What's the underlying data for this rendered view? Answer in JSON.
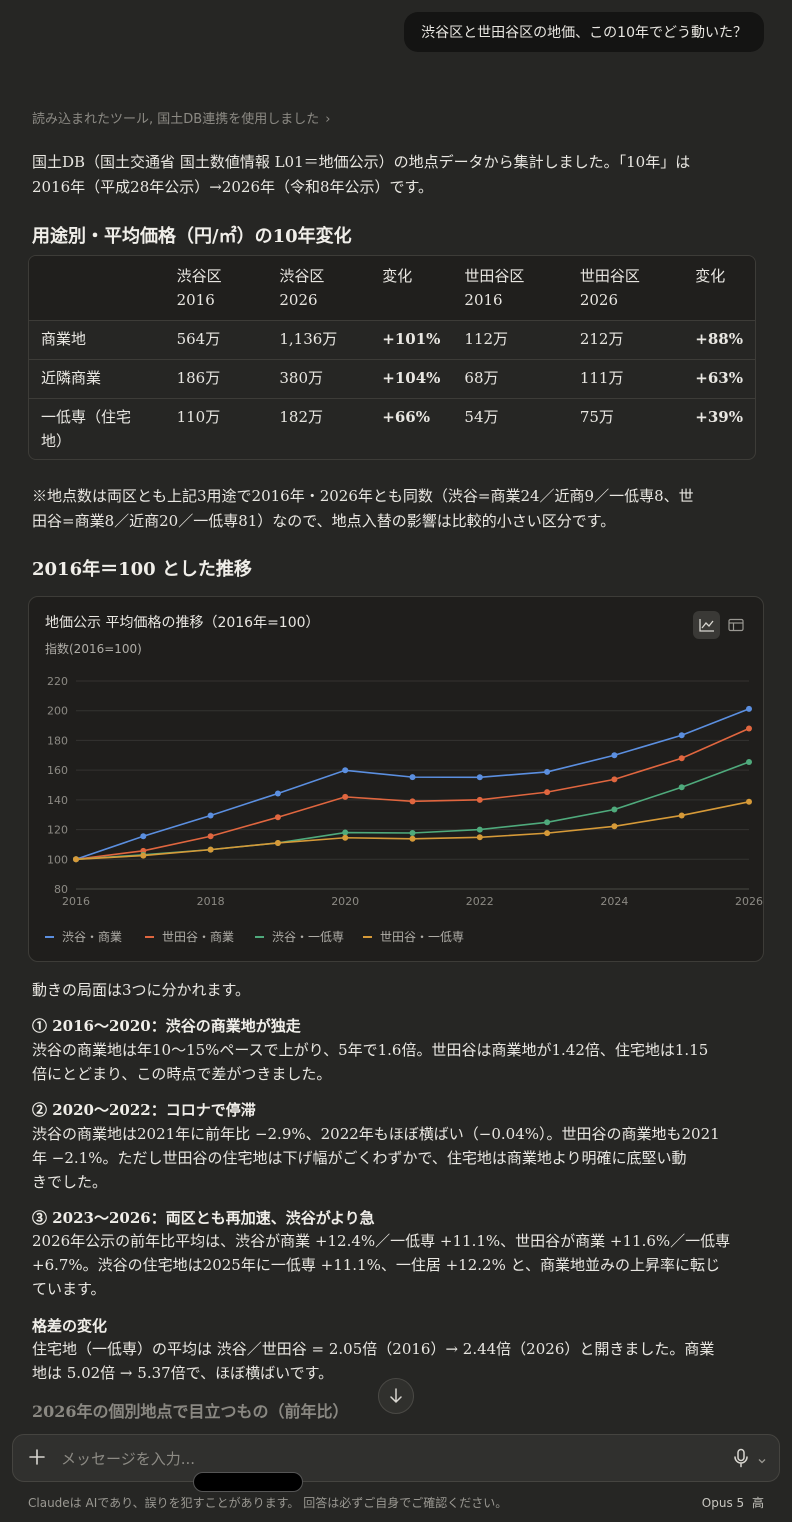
{
  "user_message": "渋谷区と世田谷区の地価、この10年でどう動いた？",
  "tool_line": "読み込まれたツール, 国土DB連携を使用しました",
  "intro": {
    "line1": "国土DB（国土交通省 国土数値情報 L01＝地価公示）の地点データから集計しました。「10年」は",
    "line2": "2016年（平成28年公示）→2026年（令和8年公示）です。"
  },
  "table_heading": "用途別・平均価格（円/㎡）の10年変化",
  "table": {
    "headers": [
      [
        "",
        ""
      ],
      [
        "渋谷区",
        "2016"
      ],
      [
        "渋谷区",
        "2026"
      ],
      [
        "変化",
        ""
      ],
      [
        "世田谷区",
        "2016"
      ],
      [
        "世田谷区",
        "2026"
      ],
      [
        "変化",
        ""
      ]
    ],
    "rows": [
      {
        "label1": "商業地",
        "label2": "",
        "c": [
          "564万",
          "1,136万",
          "+101%",
          "112万",
          "212万",
          "+88%"
        ]
      },
      {
        "label1": "近隣商業",
        "label2": "",
        "c": [
          "186万",
          "380万",
          "+104%",
          "68万",
          "111万",
          "+63%"
        ]
      },
      {
        "label1": "一低専（住宅",
        "label2": "地）",
        "c": [
          "110万",
          "182万",
          "+66%",
          "54万",
          "75万",
          "+39%"
        ]
      }
    ]
  },
  "note": {
    "line1": "※地点数は両区とも上記3用途で2016年・2026年とも同数（渋谷=商業24／近商9／一低専8、世",
    "line2": "田谷=商業8／近商20／一低専81）なので、地点入替の影響は比較的小さい区分です。"
  },
  "chart_heading": "2016年＝100 とした推移",
  "chart_data": {
    "type": "line",
    "title": "地価公示 平均価格の推移（2016年=100）",
    "ylabel": "指数(2016=100)",
    "xlabel": "",
    "x": [
      2016,
      2017,
      2018,
      2019,
      2020,
      2021,
      2022,
      2023,
      2024,
      2025,
      2026
    ],
    "x_ticks": [
      2016,
      2018,
      2020,
      2022,
      2024,
      2026
    ],
    "ylim": [
      80,
      220
    ],
    "y_ticks": [
      80,
      100,
      120,
      140,
      160,
      180,
      200,
      220
    ],
    "grid": true,
    "legend_position": "bottom-left",
    "series": [
      {
        "name": "渋谷・商業",
        "color": "#5b8fe0",
        "values": [
          100,
          115.5,
          129.5,
          144.3,
          159.9,
          155.3,
          155.2,
          158.8,
          170,
          183.5,
          201.2
        ]
      },
      {
        "name": "世田谷・商業",
        "color": "#e0663f",
        "values": [
          100,
          105.7,
          115.5,
          128.3,
          142,
          139,
          140,
          145.2,
          153.8,
          168,
          188
        ]
      },
      {
        "name": "渋谷・一低専",
        "color": "#4faa7c",
        "values": [
          100,
          103,
          106.5,
          111,
          118,
          117.7,
          120,
          124.9,
          133.5,
          148.5,
          165.5
        ]
      },
      {
        "name": "世田谷・一低専",
        "color": "#d69a38",
        "values": [
          100,
          102.5,
          106.5,
          111,
          114.5,
          113.8,
          114.8,
          117.6,
          122.2,
          129.5,
          138.7
        ]
      }
    ]
  },
  "phases_intro": "動きの局面は3つに分かれます。",
  "sections": [
    {
      "title": "① 2016〜2020：渋谷の商業地が独走",
      "lines": [
        "渋谷の商業地は年10〜15%ペースで上がり、5年で1.6倍。世田谷は商業地が1.42倍、住宅地は1.15",
        "倍にとどまり、この時点で差がつきました。"
      ]
    },
    {
      "title": "② 2020〜2022：コロナで停滞",
      "lines": [
        "渋谷の商業地は2021年に前年比 −2.9%、2022年もほぼ横ばい（−0.04%）。世田谷の商業地も2021",
        "年 −2.1%。ただし世田谷の住宅地は下げ幅がごくわずかで、住宅地は商業地より明確に底堅い動",
        "きでした。"
      ]
    },
    {
      "title": "③ 2023〜2026：両区とも再加速、渋谷がより急",
      "lines": [
        "2026年公示の前年比平均は、渋谷が商業 +12.4%／一低専 +11.1%、世田谷が商業 +11.6%／一低専",
        "+6.7%。渋谷の住宅地は2025年に一低専 +11.1%、一住居 +12.2% と、商業地並みの上昇率に転じ",
        "ています。"
      ]
    },
    {
      "title": "格差の変化",
      "lines": [
        "住宅地（一低専）の平均は 渋谷／世田谷 = 2.05倍（2016）→ 2.44倍（2026）と開きました。商業",
        "地は 5.02倍 → 5.37倍で、ほぼ横ばいです。"
      ]
    }
  ],
  "faded_next": "2026年の個別地点で目立つもの（前年比）",
  "composer": {
    "placeholder": "メッセージを入力..."
  },
  "footer": "Claudeは AIであり、誤りを犯すことがあります。 回答は必ずご自身でご確認ください。",
  "model": "Opus 5",
  "effort": "高"
}
